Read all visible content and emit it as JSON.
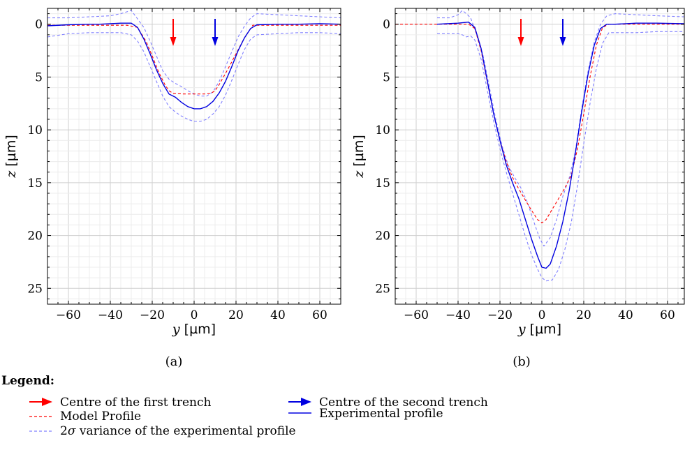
{
  "chart_data": [
    {
      "type": "line",
      "caption": "(a)",
      "xlabel_var": "y",
      "xlabel_unit": "[µm]",
      "ylabel_var": "z",
      "ylabel_unit": "[µm]",
      "xlim": [
        -70,
        70
      ],
      "ylim": [
        26.5,
        -1.5
      ],
      "y_inverted": true,
      "xticks": [
        -60,
        -40,
        -20,
        0,
        20,
        40,
        60
      ],
      "yticks": [
        0,
        5,
        10,
        15,
        20,
        25
      ],
      "grid": true,
      "arrows": [
        {
          "name": "first-trench",
          "x": -10,
          "color": "#ff0000"
        },
        {
          "name": "second-trench",
          "x": 10,
          "color": "#0000e0"
        }
      ],
      "series": [
        {
          "key": "model",
          "style": "dashed",
          "color": "#ff0000",
          "x": [
            -70,
            -32,
            -27,
            -23,
            -20,
            -17,
            -14,
            -12,
            -10,
            -5,
            0,
            5,
            8,
            10,
            12,
            16,
            20,
            24,
            28,
            70
          ],
          "y": [
            0.1,
            0.1,
            0.3,
            1.6,
            3.0,
            4.5,
            5.7,
            6.3,
            6.55,
            6.6,
            6.6,
            6.6,
            6.55,
            6.3,
            5.7,
            4.3,
            2.8,
            1.3,
            0.1,
            0.1
          ]
        },
        {
          "key": "experimental",
          "style": "solid",
          "color": "#0000e0",
          "x": [
            -70,
            -60,
            -50,
            -45,
            -40,
            -35,
            -30,
            -27,
            -24,
            -21,
            -18,
            -15,
            -12,
            -9,
            -6,
            -3,
            0,
            3,
            6,
            9,
            12,
            15,
            18,
            21,
            24,
            27,
            30,
            40,
            50,
            60,
            70
          ],
          "y": [
            0.15,
            0.05,
            0.0,
            0.0,
            -0.05,
            -0.1,
            -0.1,
            0.3,
            1.4,
            2.8,
            4.3,
            5.6,
            6.6,
            6.9,
            7.4,
            7.8,
            8.0,
            8.0,
            7.8,
            7.3,
            6.5,
            5.4,
            4.0,
            2.5,
            1.3,
            0.4,
            0.05,
            0.0,
            0.0,
            -0.05,
            0.0
          ]
        },
        {
          "key": "variance-upper",
          "style": "dashed",
          "color": "#8080ff",
          "x": [
            -70,
            -60,
            -50,
            -40,
            -35,
            -30,
            -27,
            -24,
            -21,
            -18,
            -15,
            -12,
            -9,
            -6,
            -3,
            0,
            3,
            6,
            9,
            12,
            15,
            18,
            21,
            24,
            27,
            30,
            40,
            50,
            60,
            70
          ],
          "y": [
            -0.6,
            -0.6,
            -0.7,
            -0.8,
            -1.0,
            -1.3,
            -0.5,
            0.3,
            1.6,
            3.0,
            4.4,
            5.2,
            5.6,
            5.9,
            6.3,
            6.6,
            6.8,
            6.8,
            6.4,
            5.4,
            4.0,
            2.6,
            1.2,
            0.2,
            -0.6,
            -1.0,
            -0.9,
            -0.8,
            -0.7,
            -0.6
          ]
        },
        {
          "key": "variance-lower",
          "style": "dashed",
          "color": "#8080ff",
          "x": [
            -70,
            -60,
            -50,
            -40,
            -35,
            -30,
            -27,
            -24,
            -21,
            -18,
            -15,
            -12,
            -9,
            -6,
            -3,
            0,
            3,
            6,
            9,
            12,
            15,
            18,
            21,
            24,
            27,
            30,
            40,
            50,
            60,
            70
          ],
          "y": [
            1.2,
            0.9,
            0.8,
            0.8,
            0.8,
            1.0,
            1.6,
            2.6,
            4.0,
            5.4,
            6.8,
            7.8,
            8.3,
            8.7,
            9.0,
            9.2,
            9.2,
            9.0,
            8.5,
            7.8,
            6.7,
            5.3,
            3.8,
            2.4,
            1.4,
            1.0,
            0.9,
            0.8,
            0.8,
            0.9
          ]
        }
      ]
    },
    {
      "type": "line",
      "caption": "(b)",
      "xlabel_var": "y",
      "xlabel_unit": "[µm]",
      "ylabel_var": "z",
      "ylabel_unit": "[µm]",
      "xlim": [
        -70,
        68
      ],
      "ylim": [
        26.5,
        -1.5
      ],
      "y_inverted": true,
      "xticks": [
        -60,
        -40,
        -20,
        0,
        20,
        40,
        60
      ],
      "yticks": [
        0,
        5,
        10,
        15,
        20,
        25
      ],
      "grid": true,
      "arrows": [
        {
          "name": "first-trench",
          "x": -10,
          "color": "#ff0000"
        },
        {
          "name": "second-trench",
          "x": 10,
          "color": "#0000e0"
        }
      ],
      "series": [
        {
          "key": "model",
          "style": "dashed",
          "color": "#ff0000",
          "x": [
            -70,
            -35,
            -32,
            -29,
            -26,
            -23,
            -20,
            -17,
            -14,
            -11,
            -8,
            -5,
            -2,
            0,
            2,
            5,
            8,
            11,
            14,
            17,
            20,
            23,
            26,
            29,
            32,
            68
          ],
          "y": [
            0.0,
            0.0,
            0.4,
            2.5,
            5.5,
            8.5,
            11.0,
            13.0,
            14.5,
            15.6,
            16.6,
            17.6,
            18.5,
            18.8,
            18.5,
            17.5,
            16.5,
            15.5,
            14.3,
            11.8,
            8.5,
            5.0,
            2.0,
            0.3,
            0.0,
            0.0
          ]
        },
        {
          "key": "experimental",
          "style": "solid",
          "color": "#0000e0",
          "x": [
            -50,
            -40,
            -35,
            -32,
            -29,
            -26,
            -23,
            -20,
            -17,
            -14,
            -11,
            -8,
            -5,
            -2,
            0,
            2,
            4,
            7,
            10,
            13,
            16,
            19,
            22,
            25,
            28,
            31,
            35,
            45,
            55,
            68
          ],
          "y": [
            0.0,
            -0.1,
            -0.2,
            0.3,
            2.3,
            5.4,
            8.5,
            11.0,
            13.3,
            15.0,
            16.5,
            18.4,
            20.3,
            22.0,
            23.0,
            23.1,
            22.7,
            21.0,
            18.7,
            15.8,
            12.2,
            8.3,
            4.8,
            2.0,
            0.4,
            0.0,
            0.0,
            -0.1,
            -0.1,
            -0.05
          ]
        },
        {
          "key": "variance-upper",
          "style": "dashed",
          "color": "#8080ff",
          "x": [
            -50,
            -44,
            -40,
            -38,
            -36,
            -34,
            -31,
            -28,
            -25,
            -22,
            -19,
            -16,
            -13,
            -10,
            -7,
            -4,
            -1,
            1,
            4,
            7,
            10,
            13,
            16,
            19,
            22,
            25,
            28,
            31,
            35,
            45,
            55,
            68
          ],
          "y": [
            -0.6,
            -0.6,
            -0.9,
            -1.3,
            -1.0,
            -0.6,
            1.0,
            3.0,
            6.0,
            9.0,
            11.5,
            13.4,
            14.5,
            15.5,
            16.8,
            18.6,
            20.3,
            21.0,
            20.2,
            18.5,
            16.3,
            14.6,
            12.0,
            8.0,
            4.5,
            1.7,
            0.0,
            -0.8,
            -1.0,
            -0.9,
            -0.8,
            -0.7
          ]
        },
        {
          "key": "variance-lower",
          "style": "dashed",
          "color": "#8080ff",
          "x": [
            -50,
            -44,
            -40,
            -38,
            -36,
            -34,
            -32,
            -29,
            -26,
            -23,
            -20,
            -17,
            -14,
            -11,
            -8,
            -5,
            -2,
            0,
            2,
            5,
            8,
            11,
            14,
            17,
            20,
            23,
            26,
            29,
            32,
            35,
            45,
            55,
            68
          ],
          "y": [
            0.9,
            0.9,
            0.9,
            1.0,
            1.2,
            1.1,
            1.5,
            3.3,
            6.3,
            9.2,
            11.8,
            14.0,
            16.0,
            18.0,
            20.0,
            21.8,
            23.2,
            24.0,
            24.3,
            24.2,
            23.2,
            21.3,
            18.8,
            15.3,
            11.3,
            7.5,
            4.2,
            1.8,
            0.8,
            0.8,
            0.8,
            0.7,
            0.7
          ]
        }
      ]
    }
  ],
  "legend": {
    "title": "Legend:",
    "items": [
      {
        "key": "first-trench",
        "label": "Centre of the first trench",
        "symbol": "arrow",
        "color": "#ff0000"
      },
      {
        "key": "second-trench",
        "label": "Centre of the second trench",
        "symbol": "arrow",
        "color": "#0000e0"
      },
      {
        "key": "model",
        "label": "Model Profile",
        "symbol": "dashed",
        "color": "#ff0000"
      },
      {
        "key": "experimental",
        "label": "Experimental profile",
        "symbol": "solid",
        "color": "#0000e0"
      },
      {
        "key": "variance",
        "label_pre": "2",
        "label_sigma": "σ",
        "label_post": " variance of the experimental profile",
        "symbol": "dashed",
        "color": "#8080ff"
      }
    ]
  }
}
